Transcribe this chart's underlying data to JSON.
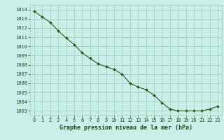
{
  "x": [
    0,
    1,
    2,
    3,
    4,
    5,
    6,
    7,
    8,
    9,
    10,
    11,
    12,
    13,
    14,
    15,
    16,
    17,
    18,
    19,
    20,
    21,
    22,
    23
  ],
  "y": [
    1013.8,
    1013.2,
    1012.6,
    1011.7,
    1010.9,
    1010.2,
    1009.3,
    1008.7,
    1008.1,
    1007.8,
    1007.5,
    1007.0,
    1006.0,
    1005.6,
    1005.3,
    1004.7,
    1003.9,
    1003.2,
    1003.0,
    1003.0,
    1003.0,
    1003.0,
    1003.2,
    1003.5
  ],
  "line_color": "#2a5a1a",
  "marker_color": "#2a5a1a",
  "bg_color": "#c8f0e8",
  "grid_color": "#99ccbb",
  "xlabel": "Graphe pression niveau de la mer (hPa)",
  "xlabel_color": "#1a4a1a",
  "ylabel_ticks": [
    1003,
    1004,
    1005,
    1006,
    1007,
    1008,
    1009,
    1010,
    1011,
    1012,
    1013,
    1014
  ],
  "ylim": [
    1002.5,
    1014.5
  ],
  "xlim": [
    -0.5,
    23.5
  ],
  "xticks": [
    0,
    1,
    2,
    3,
    4,
    5,
    6,
    7,
    8,
    9,
    10,
    11,
    12,
    13,
    14,
    15,
    16,
    17,
    18,
    19,
    20,
    21,
    22,
    23
  ],
  "tick_fontsize": 5.0,
  "xlabel_fontsize": 6.0
}
